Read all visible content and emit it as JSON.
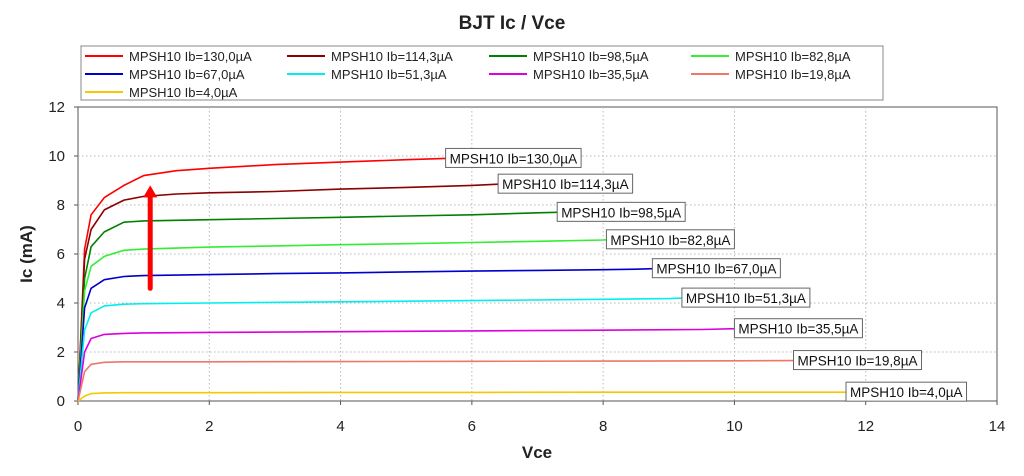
{
  "chart_data": {
    "type": "line",
    "title": "BJT Ic / Vce",
    "xlabel": "Vce",
    "ylabel": "Ic (mA)",
    "xlim": [
      0,
      14
    ],
    "ylim": [
      0,
      12
    ],
    "xticks": [
      0,
      2,
      4,
      6,
      8,
      10,
      12,
      14
    ],
    "yticks": [
      0,
      2,
      4,
      6,
      8,
      10,
      12
    ],
    "grid": true,
    "legend_position": "top",
    "series": [
      {
        "name": "MPSH10 Ib=130,0µA",
        "color": "#ff0000",
        "x": [
          0,
          0.1,
          0.2,
          0.4,
          0.7,
          1.0,
          1.5,
          2.0,
          3.0,
          4.0,
          5.0,
          5.6
        ],
        "y": [
          0,
          6.2,
          7.6,
          8.3,
          8.8,
          9.2,
          9.4,
          9.5,
          9.65,
          9.75,
          9.85,
          9.9
        ],
        "callout": "MPSH10 Ib=130,0µA"
      },
      {
        "name": "MPSH10 Ib=114,3µA",
        "color": "#8b0000",
        "x": [
          0,
          0.1,
          0.2,
          0.4,
          0.7,
          1.0,
          1.5,
          2.0,
          3.0,
          4.0,
          5.0,
          6.0,
          6.4
        ],
        "y": [
          0,
          5.8,
          7.0,
          7.8,
          8.2,
          8.35,
          8.45,
          8.5,
          8.55,
          8.65,
          8.72,
          8.8,
          8.85
        ],
        "callout": "MPSH10 Ib=114,3µA"
      },
      {
        "name": "MPSH10 Ib=98,5µA",
        "color": "#008000",
        "x": [
          0,
          0.1,
          0.2,
          0.4,
          0.7,
          1.0,
          2.0,
          3.0,
          4.0,
          5.0,
          6.0,
          7.0,
          7.3
        ],
        "y": [
          0,
          5.0,
          6.3,
          6.9,
          7.3,
          7.35,
          7.4,
          7.45,
          7.5,
          7.55,
          7.6,
          7.68,
          7.7
        ],
        "callout": "MPSH10 Ib=98,5µA"
      },
      {
        "name": "MPSH10 Ib=82,8µA",
        "color": "#33ee33",
        "x": [
          0,
          0.1,
          0.2,
          0.4,
          0.7,
          1.0,
          2.0,
          3.0,
          4.0,
          5.0,
          6.0,
          7.0,
          8.0,
          8.05
        ],
        "y": [
          0,
          4.5,
          5.5,
          5.9,
          6.15,
          6.2,
          6.28,
          6.33,
          6.38,
          6.42,
          6.47,
          6.52,
          6.57,
          6.58
        ],
        "callout": "MPSH10 Ib=82,8µA"
      },
      {
        "name": "MPSH10 Ib=67,0µA",
        "color": "#0000cc",
        "x": [
          0,
          0.1,
          0.2,
          0.4,
          0.7,
          1.0,
          2.0,
          3.0,
          4.0,
          5.0,
          6.0,
          7.0,
          8.0,
          8.5,
          8.75
        ],
        "y": [
          0,
          3.8,
          4.6,
          4.95,
          5.08,
          5.12,
          5.16,
          5.2,
          5.23,
          5.27,
          5.3,
          5.33,
          5.36,
          5.38,
          5.4
        ],
        "callout": "MPSH10 Ib=67,0µA"
      },
      {
        "name": "MPSH10 Ib=51,3µA",
        "color": "#00eeee",
        "x": [
          0,
          0.1,
          0.2,
          0.4,
          0.7,
          1.0,
          2.0,
          4.0,
          6.0,
          8.0,
          9.0,
          9.2
        ],
        "y": [
          0,
          2.9,
          3.6,
          3.88,
          3.95,
          3.97,
          4.0,
          4.05,
          4.1,
          4.15,
          4.18,
          4.2
        ],
        "callout": "MPSH10 Ib=51,3µA"
      },
      {
        "name": "MPSH10 Ib=35,5µA",
        "color": "#dd00dd",
        "x": [
          0,
          0.1,
          0.2,
          0.4,
          0.7,
          1.0,
          2.0,
          4.0,
          6.0,
          8.0,
          9.5,
          10.0
        ],
        "y": [
          0,
          2.0,
          2.55,
          2.72,
          2.76,
          2.78,
          2.8,
          2.83,
          2.86,
          2.89,
          2.92,
          2.95
        ],
        "callout": "MPSH10 Ib=35,5µA"
      },
      {
        "name": "MPSH10 Ib=19,8µA",
        "color": "#ee7766",
        "x": [
          0,
          0.1,
          0.2,
          0.4,
          0.7,
          1.0,
          2.0,
          4.0,
          6.0,
          8.0,
          10.0,
          10.9
        ],
        "y": [
          0,
          1.2,
          1.5,
          1.58,
          1.6,
          1.6,
          1.6,
          1.61,
          1.62,
          1.63,
          1.64,
          1.65
        ],
        "callout": "MPSH10 Ib=19,8µA"
      },
      {
        "name": "MPSH10 Ib=4,0µA",
        "color": "#f5c800",
        "x": [
          0,
          0.1,
          0.2,
          0.4,
          0.7,
          1.0,
          2.0,
          4.0,
          6.0,
          8.0,
          10.0,
          11.7
        ],
        "y": [
          0,
          0.2,
          0.3,
          0.33,
          0.34,
          0.34,
          0.34,
          0.35,
          0.35,
          0.36,
          0.36,
          0.36
        ],
        "callout": "MPSH10 Ib=4,0µA"
      }
    ],
    "annotation": {
      "type": "arrow",
      "color": "#ff0000",
      "from": [
        1.1,
        4.6
      ],
      "to": [
        1.1,
        8.8
      ]
    }
  }
}
